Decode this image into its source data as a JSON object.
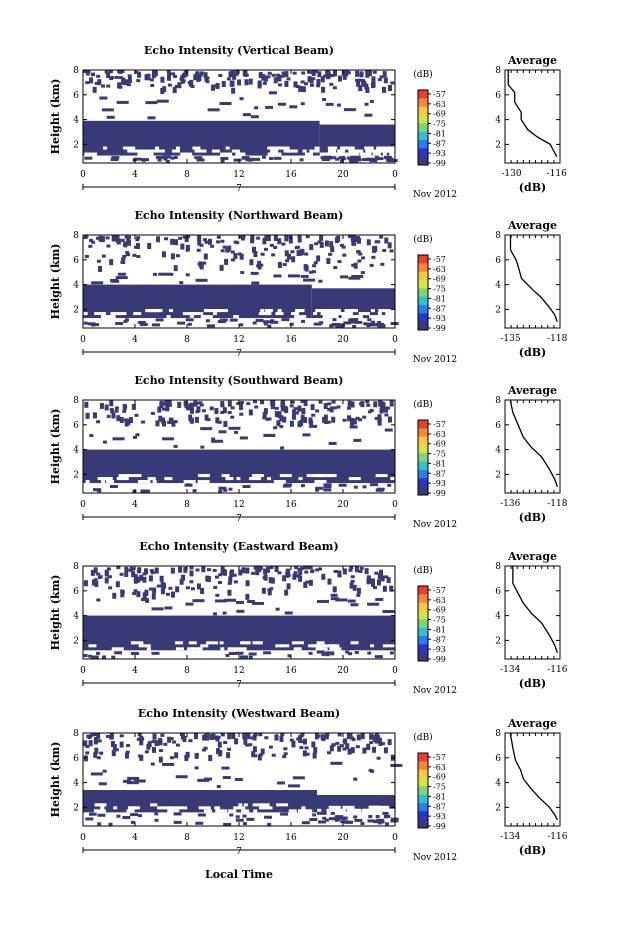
{
  "figure": {
    "xlabel": "Local Time",
    "x_ticks": [
      "0",
      "4",
      "8",
      "12",
      "16",
      "20",
      "0"
    ],
    "date_tick": "7",
    "date_label": "Nov 2012",
    "ylabel": "Height (km)",
    "y_ticks": [
      "2",
      "4",
      "6",
      "8"
    ],
    "colorbar_unit": "(dB)",
    "colorbar_ticks": [
      "-57",
      "-63",
      "-69",
      "-75",
      "-81",
      "-87",
      "-93",
      "-99"
    ],
    "colorbar_colors": [
      "#e8412b",
      "#f7843c",
      "#f6c844",
      "#d4e24b",
      "#7fd37c",
      "#34c0c8",
      "#2b7fe8",
      "#2a36c8",
      "#383a78"
    ],
    "average_title": "Average",
    "average_xlabel": "(dB)"
  },
  "chart_data": [
    {
      "type": "heatmap",
      "title": "Echo Intensity (Vertical Beam)",
      "xlabel": "",
      "ylabel": "Height (km)",
      "xlim": [
        0,
        24
      ],
      "ylim": [
        0.5,
        8
      ],
      "cell_color": "#383a78",
      "bands": [
        {
          "x": [
            0,
            18.2
          ],
          "y": [
            1.1,
            3.9
          ]
        },
        {
          "x": [
            18.2,
            24
          ],
          "y": [
            1.1,
            3.6
          ]
        }
      ],
      "upper_layer_km": [
        6.3,
        8
      ],
      "average": {
        "xticks": [
          "-130",
          "-116"
        ],
        "xlim": [
          -132,
          -115
        ],
        "ylim": [
          0.5,
          8
        ],
        "profile": [
          [
            -116,
            1.0
          ],
          [
            -117,
            1.5
          ],
          [
            -118,
            2.0
          ],
          [
            -122,
            2.6
          ],
          [
            -125,
            3.2
          ],
          [
            -127,
            4.0
          ],
          [
            -127,
            4.6
          ],
          [
            -129,
            5.4
          ],
          [
            -129,
            6.2
          ],
          [
            -131,
            6.8
          ],
          [
            -131,
            8.0
          ]
        ]
      }
    },
    {
      "type": "heatmap",
      "title": "Echo Intensity (Northward Beam)",
      "xlabel": "",
      "ylabel": "Height (km)",
      "xlim": [
        0,
        24
      ],
      "ylim": [
        0.5,
        8
      ],
      "cell_color": "#383a78",
      "bands": [
        {
          "x": [
            0,
            17.6
          ],
          "y": [
            1.3,
            4.0
          ]
        },
        {
          "x": [
            17.6,
            24
          ],
          "y": [
            1.3,
            3.7
          ]
        }
      ],
      "upper_layer_km": [
        5.2,
        8
      ],
      "average": {
        "xticks": [
          "-135",
          "-118"
        ],
        "xlim": [
          -137,
          -117
        ],
        "ylim": [
          0.5,
          8
        ],
        "profile": [
          [
            -118,
            1.0
          ],
          [
            -119,
            1.6
          ],
          [
            -121,
            2.2
          ],
          [
            -124,
            3.0
          ],
          [
            -127,
            3.6
          ],
          [
            -131,
            4.5
          ],
          [
            -132,
            5.3
          ],
          [
            -133,
            6.0
          ],
          [
            -135,
            6.8
          ],
          [
            -135,
            8.0
          ]
        ]
      }
    },
    {
      "type": "heatmap",
      "title": "Echo Intensity (Southward Beam)",
      "xlabel": "",
      "ylabel": "Height (km)",
      "xlim": [
        0,
        24
      ],
      "ylim": [
        0.5,
        8
      ],
      "cell_color": "#383a78",
      "bands": [
        {
          "x": [
            0,
            24
          ],
          "y": [
            1.3,
            4.0
          ]
        }
      ],
      "upper_layer_km": [
        6.0,
        8
      ],
      "average": {
        "xticks": [
          "-136",
          "-118"
        ],
        "xlim": [
          -138,
          -117
        ],
        "ylim": [
          0.5,
          8
        ],
        "profile": [
          [
            -118,
            1.0
          ],
          [
            -119,
            1.6
          ],
          [
            -121,
            2.4
          ],
          [
            -124,
            3.4
          ],
          [
            -128,
            4.2
          ],
          [
            -131,
            5.0
          ],
          [
            -133,
            6.0
          ],
          [
            -135,
            7.0
          ],
          [
            -136,
            8.0
          ]
        ]
      }
    },
    {
      "type": "heatmap",
      "title": "Echo Intensity (Eastward Beam)",
      "xlabel": "",
      "ylabel": "Height (km)",
      "xlim": [
        0,
        24
      ],
      "ylim": [
        0.5,
        8
      ],
      "cell_color": "#383a78",
      "bands": [
        {
          "x": [
            0,
            24
          ],
          "y": [
            1.2,
            4.0
          ]
        }
      ],
      "upper_layer_km": [
        5.5,
        8
      ],
      "average": {
        "xticks": [
          "-134",
          "-116"
        ],
        "xlim": [
          -136,
          -115
        ],
        "ylim": [
          0.5,
          8
        ],
        "profile": [
          [
            -116,
            1.0
          ],
          [
            -117,
            1.6
          ],
          [
            -119,
            2.4
          ],
          [
            -122,
            3.4
          ],
          [
            -126,
            4.2
          ],
          [
            -129,
            5.0
          ],
          [
            -131,
            5.8
          ],
          [
            -133,
            6.6
          ],
          [
            -133,
            8.0
          ]
        ]
      }
    },
    {
      "type": "heatmap",
      "title": "Echo Intensity (Westward Beam)",
      "xlabel": "Local Time",
      "ylabel": "Height (km)",
      "xlim": [
        0,
        24
      ],
      "ylim": [
        0.5,
        8
      ],
      "cell_color": "#383a78",
      "bands": [
        {
          "x": [
            0,
            18
          ],
          "y": [
            1.6,
            3.4
          ]
        },
        {
          "x": [
            18,
            24
          ],
          "y": [
            1.4,
            3.0
          ]
        }
      ],
      "upper_layer_km": [
        5.8,
        8
      ],
      "average": {
        "xticks": [
          "-134",
          "-116"
        ],
        "xlim": [
          -136,
          -115
        ],
        "ylim": [
          0.5,
          8
        ],
        "profile": [
          [
            -116,
            1.0
          ],
          [
            -117,
            1.4
          ],
          [
            -119,
            2.0
          ],
          [
            -123,
            2.8
          ],
          [
            -126,
            3.5
          ],
          [
            -129,
            4.3
          ],
          [
            -130,
            5.0
          ],
          [
            -132,
            5.8
          ],
          [
            -133,
            6.8
          ],
          [
            -134,
            8.0
          ]
        ]
      }
    }
  ]
}
